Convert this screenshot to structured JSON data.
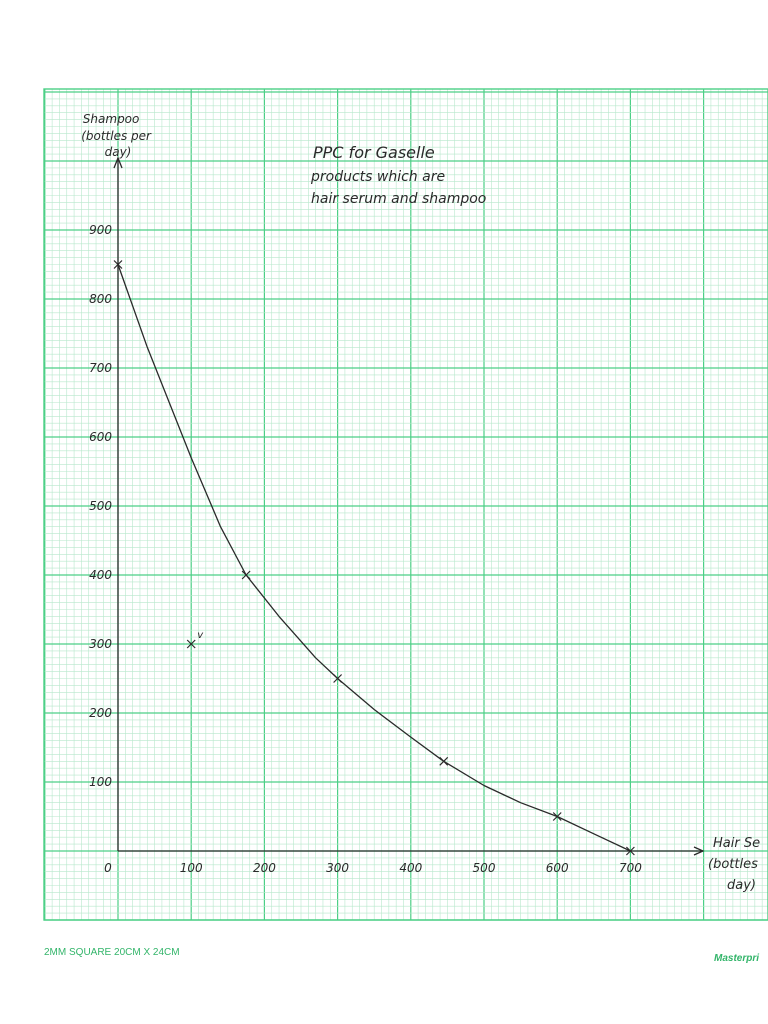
{
  "chart_data": {
    "type": "line",
    "title_lines": [
      "PPC for Gaselle",
      "products which are",
      "hair serum and shampoo"
    ],
    "ylabel_lines": [
      "Shampoo",
      "(bottles per",
      "day)"
    ],
    "xlabel_lines": [
      "Hair Se",
      "(bottles",
      "day)"
    ],
    "x_ticks": [
      0,
      100,
      200,
      300,
      400,
      500,
      600,
      700
    ],
    "y_ticks": [
      100,
      200,
      300,
      400,
      500,
      600,
      700,
      800,
      900
    ],
    "xlim": [
      0,
      800
    ],
    "ylim": [
      0,
      1000
    ],
    "series": [
      {
        "x": [
          0,
          175,
          300,
          445,
          600,
          700
        ],
        "y": [
          850,
          400,
          250,
          130,
          50,
          0
        ],
        "marker": "x"
      }
    ],
    "curve": {
      "x": [
        0,
        40,
        100,
        140,
        175,
        220,
        270,
        300,
        350,
        400,
        445,
        500,
        550,
        600,
        650,
        700
      ],
      "y": [
        850,
        730,
        570,
        470,
        400,
        340,
        280,
        250,
        205,
        165,
        130,
        95,
        70,
        50,
        25,
        0
      ]
    },
    "extra_points": [
      {
        "x": 100,
        "y": 300,
        "label": "v"
      }
    ],
    "grid": true
  },
  "colors": {
    "grid_minor": "#b8e8cc",
    "grid_major": "#4ccf86",
    "ink": "#2a2a2a",
    "footer": "#33b56a"
  },
  "footer": {
    "paper_spec": "2MM SQUARE 20CM X 24CM",
    "brand": "Masterpri"
  }
}
